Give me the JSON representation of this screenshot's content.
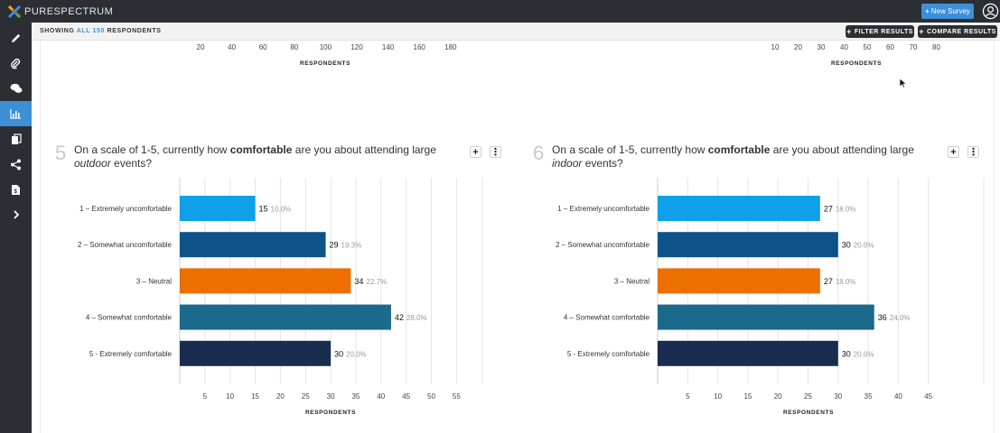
{
  "app": {
    "brand": "PURESPECTRUM",
    "new_survey_label": "New Survey"
  },
  "sidebar": {
    "items": [
      {
        "icon": "pencil-icon"
      },
      {
        "icon": "paperclip-icon"
      },
      {
        "icon": "chat-icon"
      },
      {
        "icon": "bar-chart-icon",
        "active": true
      },
      {
        "icon": "copy-icon"
      },
      {
        "icon": "share-icon"
      },
      {
        "icon": "document-icon"
      },
      {
        "icon": "chevron-right-icon"
      }
    ]
  },
  "subheader": {
    "showing_prefix": "SHOWING",
    "showing_count": "ALL 150",
    "showing_suffix": "RESPONDENTS",
    "filter_label": "FILTER RESULTS",
    "compare_label": "COMPARE RESULTS"
  },
  "top_axes": [
    {
      "ticks": [
        "20",
        "40",
        "60",
        "80",
        "100",
        "120",
        "140",
        "160",
        "180"
      ],
      "label": "RESPONDENTS"
    },
    {
      "ticks": [
        "10",
        "20",
        "30",
        "40",
        "50",
        "60",
        "70",
        "80"
      ],
      "label": "RESPONDENTS"
    }
  ],
  "questions": [
    {
      "number": "5",
      "text_pre": "On a scale of 1-5, currently how ",
      "text_bold": "comfortable",
      "text_mid": " are you about attending large ",
      "text_italic": "outdoor",
      "text_post": " events?"
    },
    {
      "number": "6",
      "text_pre": "On a scale of 1-5, currently how ",
      "text_bold": "comfortable",
      "text_mid": " are you about attending large ",
      "text_italic": "indoor",
      "text_post": " events?"
    }
  ],
  "chart_data": [
    {
      "type": "bar",
      "orientation": "horizontal",
      "categories": [
        "1 – Extremely uncomfortable",
        "2 – Somewhat uncomfortable",
        "3 – Neutral",
        "4 – Somewhat comfortable",
        "5 - Extremely comfortable"
      ],
      "values": [
        15,
        29,
        34,
        42,
        30
      ],
      "percent_labels": [
        "10.0%",
        "19.3%",
        "22.7%",
        "28.0%",
        "20.0%"
      ],
      "colors": [
        "#0ea0e8",
        "#0d5289",
        "#ec6f00",
        "#1b6a8c",
        "#182c4e"
      ],
      "xticks": [
        5,
        10,
        15,
        20,
        25,
        30,
        35,
        40,
        45,
        50,
        55
      ],
      "xlim": [
        0,
        60
      ],
      "xlabel": "RESPONDENTS",
      "grid": true
    },
    {
      "type": "bar",
      "orientation": "horizontal",
      "categories": [
        "1 – Extremely uncomfortable",
        "2 – Somewhat uncomfortable",
        "3 – Neutral",
        "4 – Somewhat comfortable",
        "5 - Extremely comfortable"
      ],
      "values": [
        27,
        30,
        27,
        36,
        30
      ],
      "percent_labels": [
        "18.0%",
        "20.0%",
        "18.0%",
        "24.0%",
        "20.0%"
      ],
      "colors": [
        "#0ea0e8",
        "#0d5289",
        "#ec6f00",
        "#1b6a8c",
        "#182c4e"
      ],
      "xticks": [
        5,
        10,
        15,
        20,
        25,
        30,
        35,
        40,
        45
      ],
      "xlim": [
        0,
        50
      ],
      "xlabel": "RESPONDENTS",
      "grid": true
    }
  ]
}
